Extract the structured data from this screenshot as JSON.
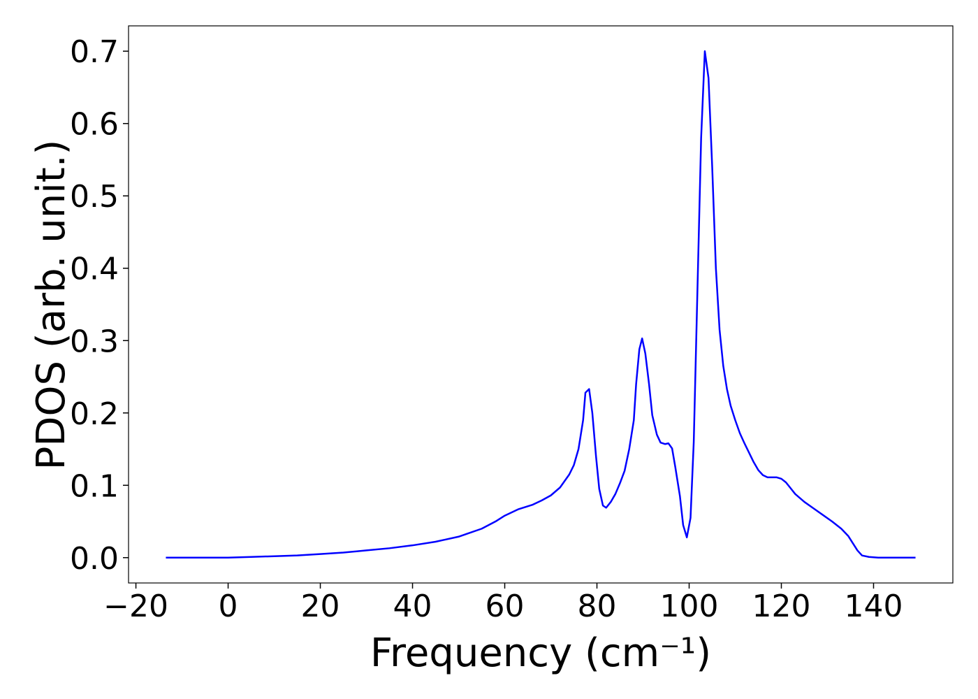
{
  "chart_data": {
    "type": "line",
    "xlabel": "Frequency (cm⁻¹)",
    "ylabel": "PDOS (arb. unit.)",
    "xlim": [
      -21.6,
      157.2
    ],
    "ylim": [
      -0.035,
      0.735
    ],
    "xticks": [
      {
        "value": -20,
        "label": "−20"
      },
      0,
      20,
      40,
      60,
      80,
      100,
      120,
      140
    ],
    "yticks": [
      {
        "value": 0,
        "label": "0.0"
      },
      0.1,
      0.2,
      0.3,
      0.4,
      0.5,
      0.6,
      0.7
    ],
    "series": [
      {
        "color": "#0000ff",
        "x": [
          -13.5,
          0,
          5,
          10,
          15,
          20,
          25,
          30,
          35,
          40,
          45,
          50,
          55,
          58,
          60,
          63,
          66,
          68,
          70,
          72,
          74,
          75,
          76,
          77,
          77.5,
          78.3,
          79,
          79.8,
          80.5,
          81.3,
          82,
          83,
          84,
          85,
          86,
          87,
          88,
          88.5,
          89.2,
          89.8,
          90.5,
          91.3,
          92,
          93,
          93.8,
          94.8,
          95.5,
          96.3,
          97,
          98,
          98.7,
          99.5,
          100.3,
          101,
          101.8,
          102.6,
          103.4,
          104.2,
          105,
          105.8,
          106.6,
          107.4,
          108.2,
          109,
          110,
          111,
          112,
          113,
          114,
          115,
          116,
          117,
          118,
          119,
          120,
          121,
          122,
          123,
          125,
          127,
          129,
          131,
          133,
          134.5,
          135.5,
          136.5,
          137.5,
          139,
          141,
          149.1
        ],
        "values": [
          0,
          0,
          0.001,
          0.002,
          0.003,
          0.005,
          0.007,
          0.01,
          0.013,
          0.017,
          0.022,
          0.029,
          0.04,
          0.05,
          0.058,
          0.067,
          0.073,
          0.079,
          0.086,
          0.097,
          0.115,
          0.128,
          0.15,
          0.19,
          0.228,
          0.233,
          0.2,
          0.14,
          0.095,
          0.072,
          0.069,
          0.077,
          0.088,
          0.103,
          0.12,
          0.15,
          0.19,
          0.24,
          0.288,
          0.303,
          0.282,
          0.24,
          0.197,
          0.17,
          0.159,
          0.157,
          0.158,
          0.151,
          0.125,
          0.085,
          0.045,
          0.028,
          0.055,
          0.16,
          0.37,
          0.58,
          0.7,
          0.663,
          0.54,
          0.4,
          0.315,
          0.265,
          0.233,
          0.21,
          0.19,
          0.172,
          0.158,
          0.145,
          0.132,
          0.121,
          0.114,
          0.111,
          0.111,
          0.111,
          0.109,
          0.104,
          0.096,
          0.088,
          0.077,
          0.068,
          0.059,
          0.05,
          0.04,
          0.03,
          0.02,
          0.01,
          0.003,
          0.001,
          0,
          0
        ]
      }
    ]
  }
}
